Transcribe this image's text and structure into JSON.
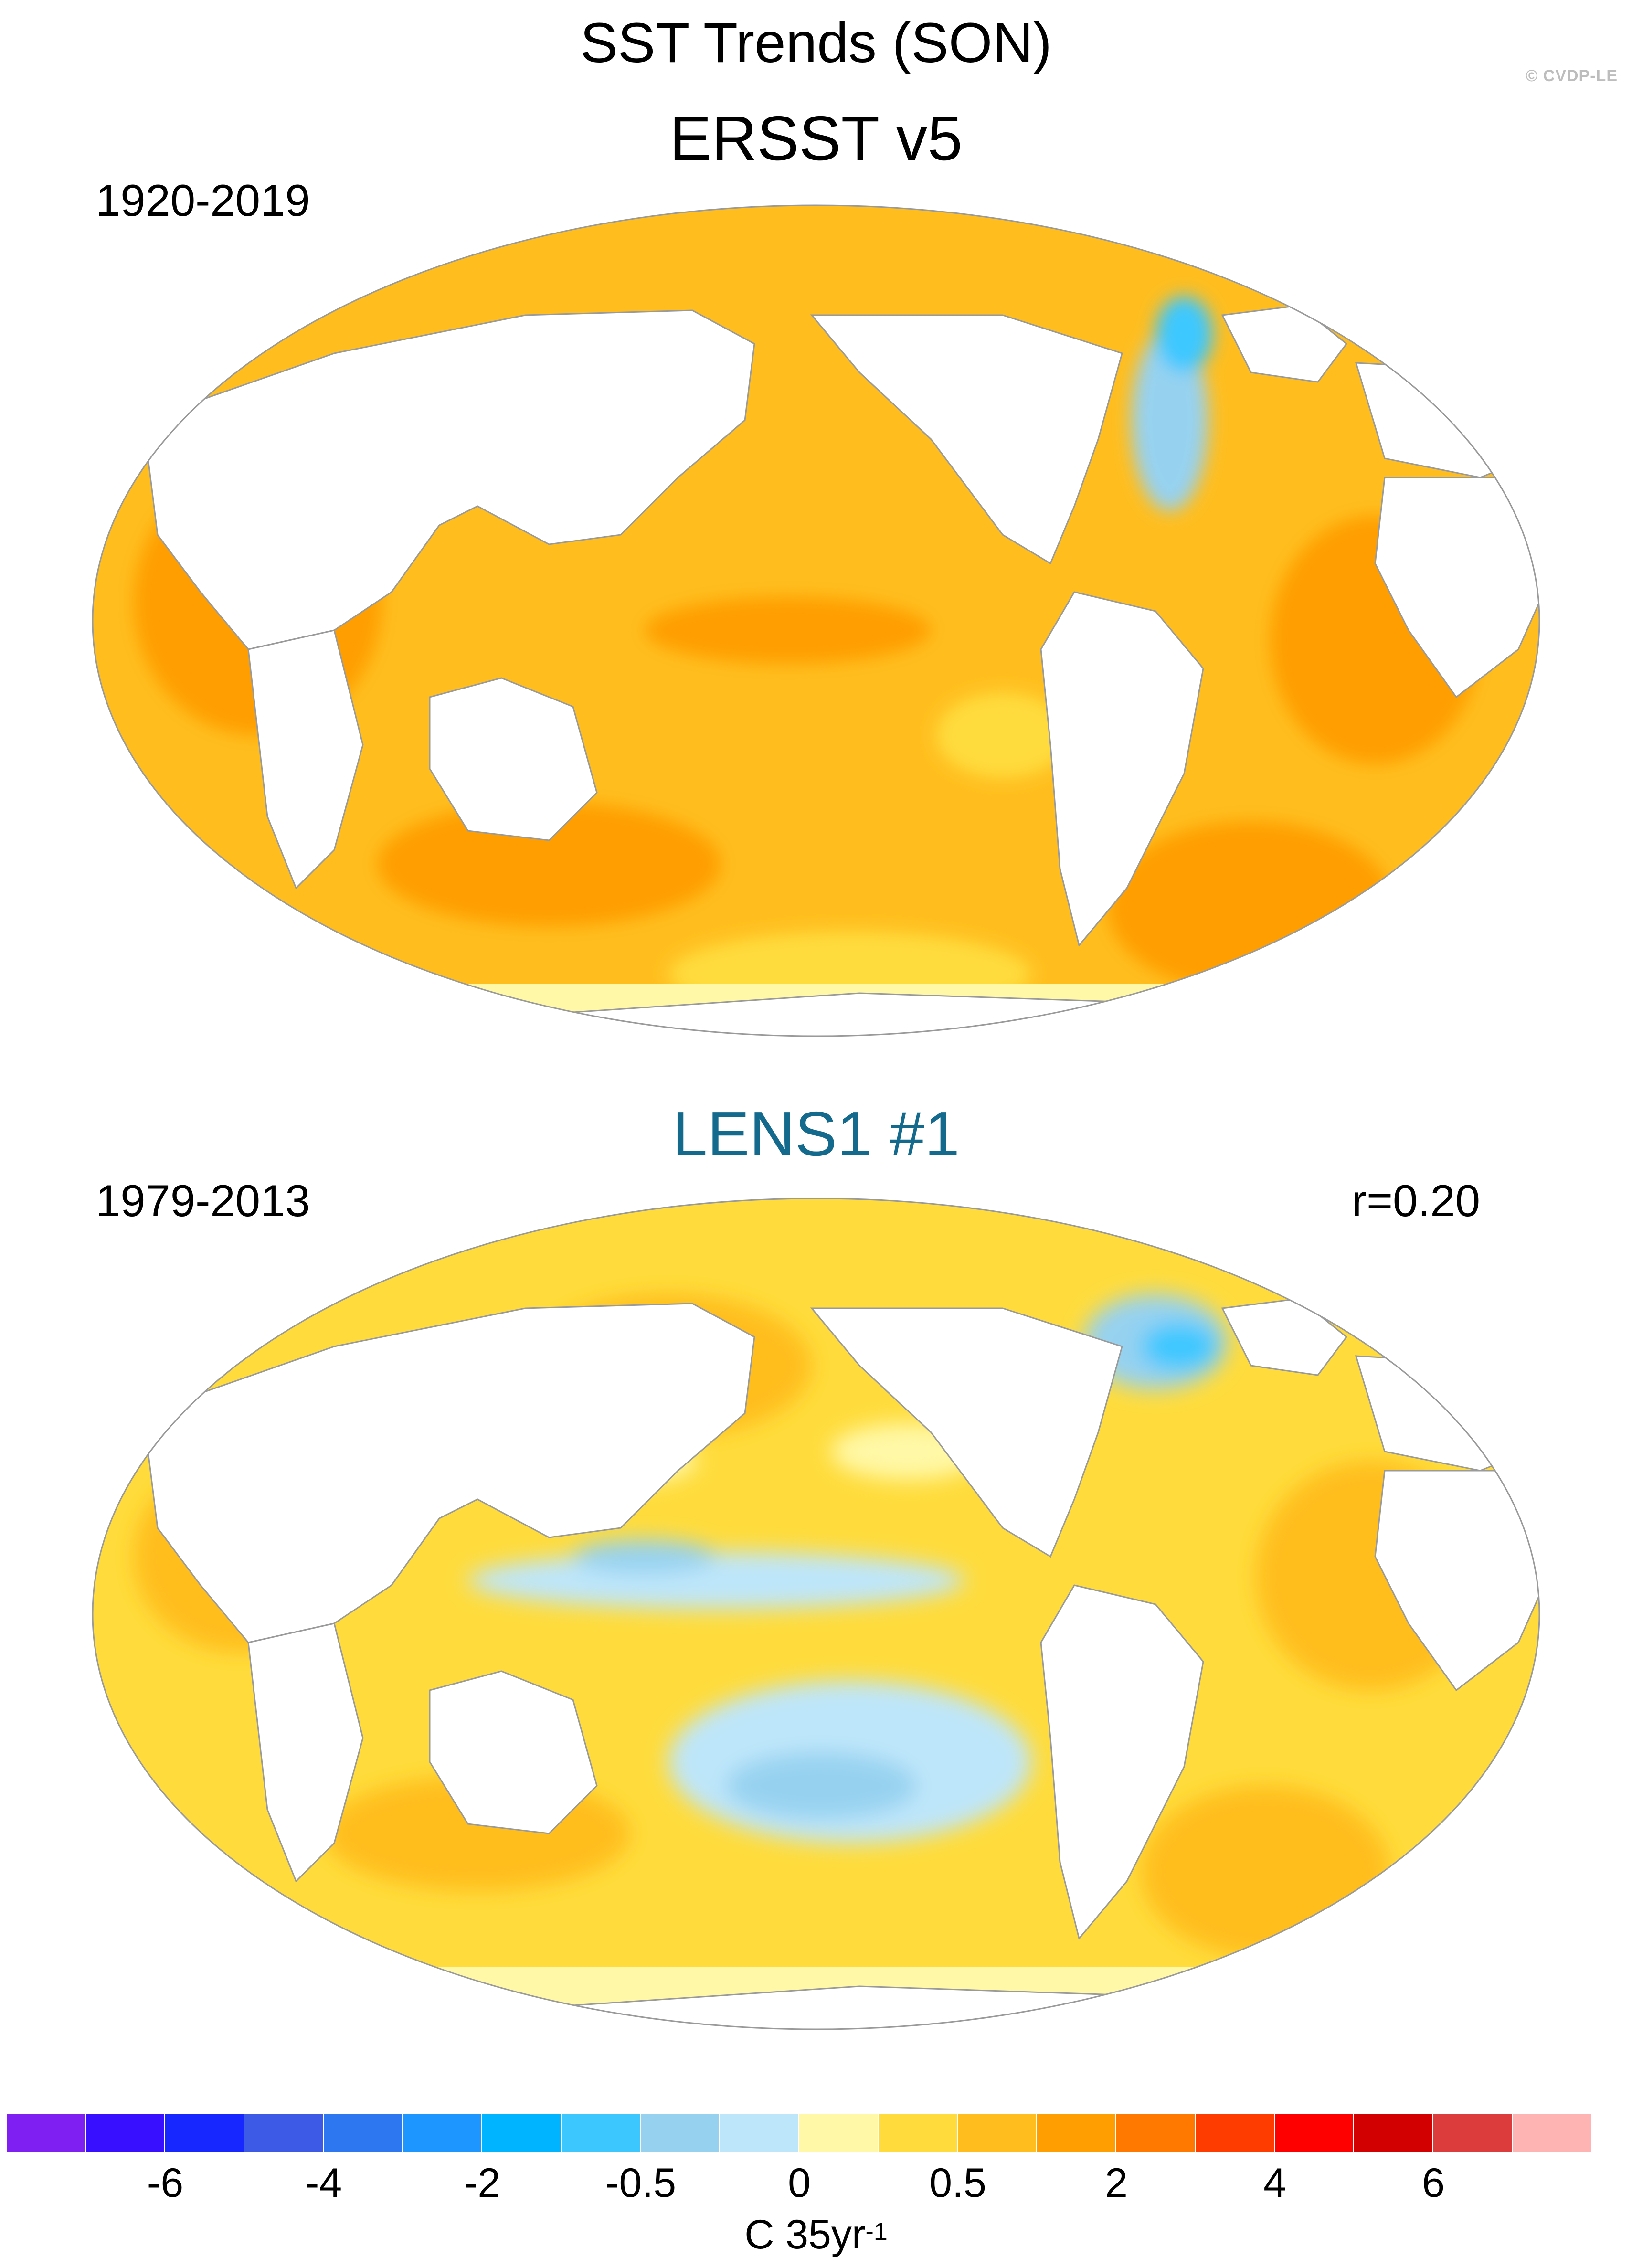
{
  "title": "SST Trends (SON)",
  "watermark": "© CVDP-LE",
  "panels": [
    {
      "title": "ERSST v5",
      "title_color": "#000000",
      "period": "1920-2019",
      "corr": ""
    },
    {
      "title": "LENS1 #1",
      "title_color": "#146a8c",
      "period": "1979-2013",
      "corr": "r=0.20"
    }
  ],
  "colorbar": {
    "colors": [
      "#7f1ff2",
      "#3810ff",
      "#1628ff",
      "#3c5ae6",
      "#2d78f0",
      "#1e96ff",
      "#00b4ff",
      "#3cc8ff",
      "#96d2f0",
      "#bee6fa",
      "#fff8a6",
      "#ffdc3c",
      "#ffbe1e",
      "#ff9e00",
      "#ff7800",
      "#ff3c00",
      "#ff0000",
      "#d20000",
      "#dc3c3c",
      "#ffb4b4"
    ],
    "labels": [
      "-6",
      "-4",
      "-2",
      "-0.5",
      "0",
      "0.5",
      "2",
      "4",
      "6"
    ],
    "units": "C 35yr",
    "units_sup": "-1"
  }
}
